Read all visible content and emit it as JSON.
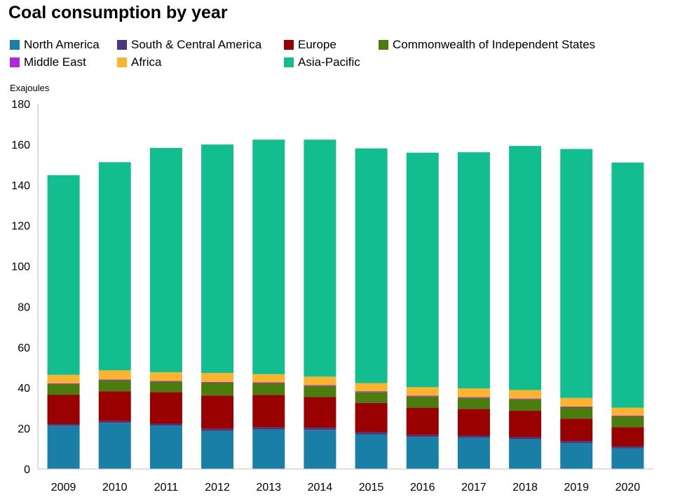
{
  "chart_data": {
    "type": "bar",
    "stacked": true,
    "title": "Coal consumption by year",
    "ylabel": "Exajoules",
    "xlabel": "",
    "ylim": [
      0,
      180
    ],
    "yticks": [
      0,
      20,
      40,
      60,
      80,
      100,
      120,
      140,
      160,
      180
    ],
    "grid": false,
    "legend_position": "top",
    "categories": [
      "2009",
      "2010",
      "2011",
      "2012",
      "2013",
      "2014",
      "2015",
      "2016",
      "2017",
      "2018",
      "2019",
      "2020"
    ],
    "series": [
      {
        "name": "North America",
        "color": "#1a7fa6",
        "values": [
          21.3,
          22.7,
          21.4,
          18.8,
          19.5,
          19.3,
          17.1,
          15.8,
          15.4,
          14.7,
          12.8,
          10.2
        ]
      },
      {
        "name": "South & Central America",
        "color": "#4b3580",
        "values": [
          0.8,
          0.9,
          0.9,
          1.0,
          1.0,
          1.0,
          1.0,
          1.0,
          1.0,
          1.0,
          1.0,
          0.8
        ]
      },
      {
        "name": "Europe",
        "color": "#990000",
        "values": [
          14.5,
          14.7,
          15.6,
          16.4,
          16.0,
          15.1,
          14.4,
          13.4,
          13.2,
          13.0,
          11.0,
          9.6
        ]
      },
      {
        "name": "Commonwealth of Independent States",
        "color": "#4b7d0e",
        "values": [
          5.2,
          5.4,
          5.1,
          6.3,
          5.8,
          5.5,
          5.4,
          5.5,
          5.4,
          5.6,
          5.6,
          5.3
        ]
      },
      {
        "name": "Middle East",
        "color": "#b027e0",
        "values": [
          0.4,
          0.4,
          0.4,
          0.4,
          0.4,
          0.4,
          0.4,
          0.4,
          0.4,
          0.4,
          0.4,
          0.4
        ]
      },
      {
        "name": "Africa",
        "color": "#fcb32e",
        "values": [
          4.2,
          4.5,
          4.3,
          4.4,
          4.0,
          4.2,
          4.0,
          4.2,
          4.3,
          4.2,
          4.2,
          3.9
        ]
      },
      {
        "name": "Asia-Pacific",
        "color": "#12bd8f",
        "values": [
          98.4,
          102.6,
          110.5,
          112.6,
          115.6,
          116.8,
          115.7,
          115.6,
          116.4,
          120.3,
          122.7,
          120.8
        ]
      }
    ]
  }
}
